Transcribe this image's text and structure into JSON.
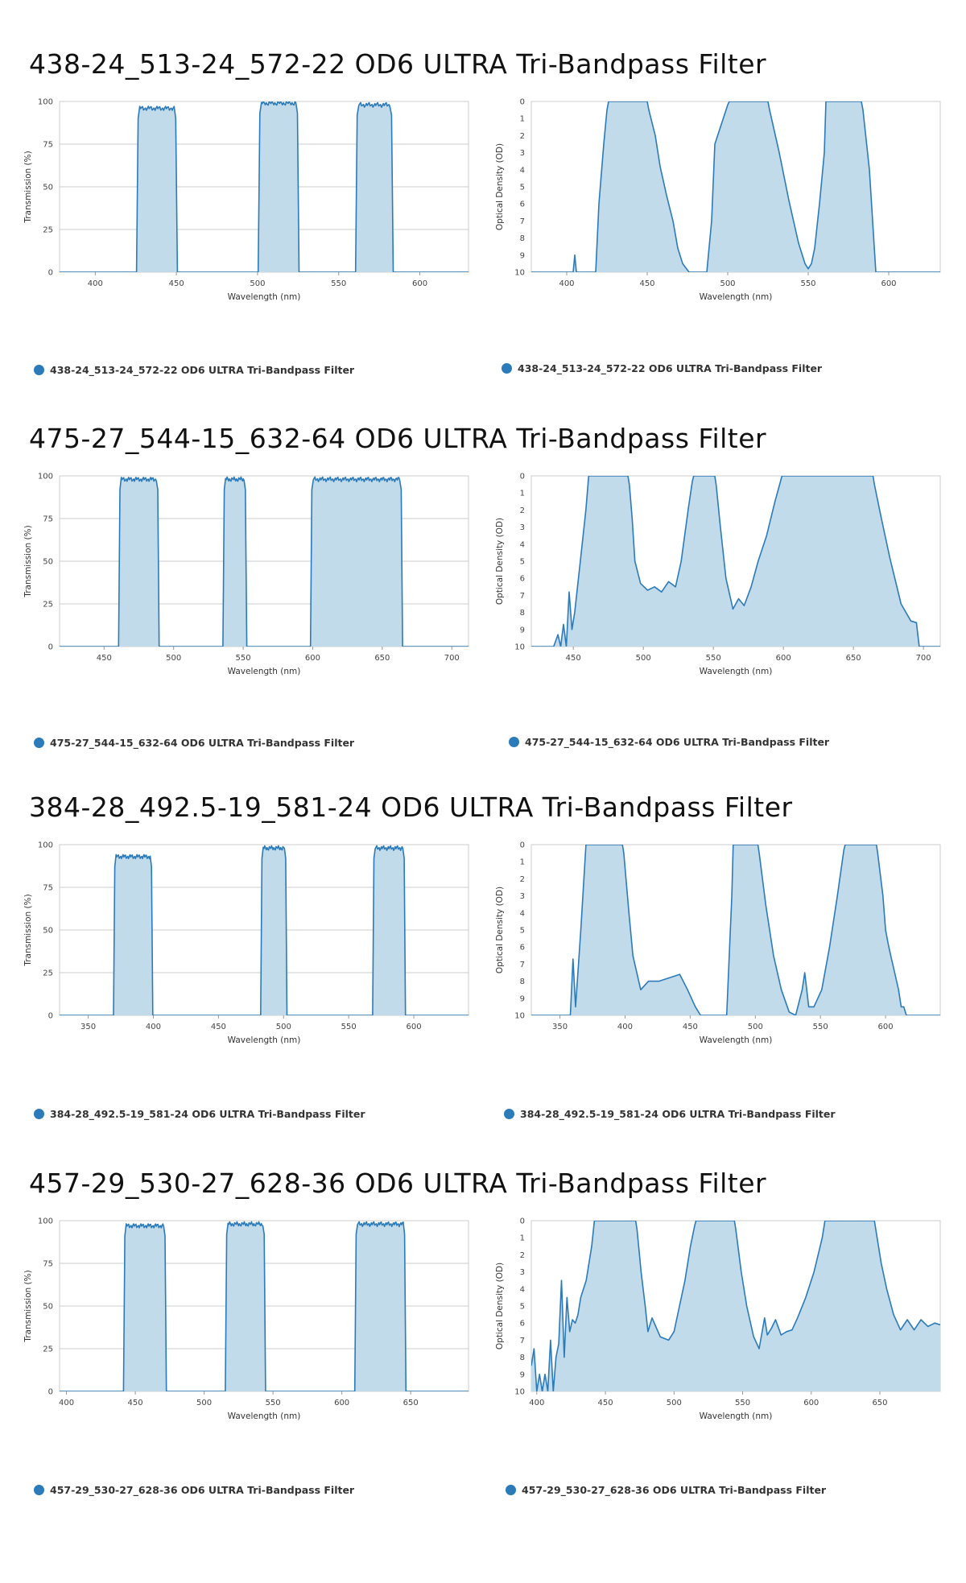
{
  "colors": {
    "line": "#2b7bba",
    "fill": "#c2dbea",
    "frame": "#cccccc",
    "grid": "#cccccc"
  },
  "sections": [
    {
      "title": "438-24_513-24_572-22 OD6 ULTRA Tri-Bandpass Filter",
      "transmission": {
        "legend": "438-24_513-24_572-22 OD6 ULTRA Tri-Bandpass Filter",
        "chart_data": {
          "type": "area",
          "xlabel": "Wavelength (nm)",
          "ylabel": "Transmission (%)",
          "xlim": [
            378,
            630
          ],
          "ylim": [
            0,
            100
          ],
          "xticks": [
            400,
            450,
            500,
            550,
            600
          ],
          "yticks": [
            0,
            25,
            50,
            75,
            100
          ],
          "grid": "y",
          "legend_position": "bottom-left",
          "bands": [
            {
              "start": 426,
              "end": 450,
              "peak": 96
            },
            {
              "start": 501,
              "end": 525,
              "peak": 99
            },
            {
              "start": 561,
              "end": 583,
              "peak": 98
            }
          ]
        }
      },
      "density": {
        "legend": "438-24_513-24_572-22 OD6 ULTRA Tri-Bandpass Filter",
        "chart_data": {
          "type": "area",
          "xlabel": "Wavelength (nm)",
          "ylabel": "Optical Density (OD)",
          "xlim": [
            378,
            632
          ],
          "ylim": [
            10,
            0
          ],
          "xticks": [
            400,
            450,
            500,
            550,
            600
          ],
          "yticks": [
            0,
            1,
            2,
            3,
            4,
            5,
            6,
            7,
            8,
            9,
            10
          ],
          "x": [
            378,
            404,
            405,
            406,
            407,
            418,
            420,
            423,
            425,
            426,
            450,
            451,
            455,
            458,
            462,
            466,
            469,
            472,
            476,
            479,
            482,
            487,
            490,
            492,
            500,
            501,
            525,
            526,
            532,
            538,
            544,
            548,
            550,
            552,
            554,
            557,
            560,
            561,
            583,
            584,
            588,
            592,
            632
          ],
          "y": [
            10,
            10,
            9,
            10,
            10,
            10,
            6,
            2.5,
            0.5,
            0,
            0,
            0.5,
            2,
            3.8,
            5.5,
            7,
            8.6,
            9.5,
            10,
            10,
            10,
            10,
            7,
            2.5,
            0.2,
            0,
            0,
            0.5,
            3,
            5.8,
            8.3,
            9.5,
            9.8,
            9.5,
            8.6,
            6,
            3,
            0,
            0,
            0.5,
            4,
            10,
            10
          ]
        }
      }
    },
    {
      "title": "475-27_544-15_632-64 OD6 ULTRA Tri-Bandpass Filter",
      "transmission": {
        "legend": "475-27_544-15_632-64 OD6 ULTRA Tri-Bandpass Filter",
        "chart_data": {
          "type": "area",
          "xlabel": "Wavelength (nm)",
          "ylabel": "Transmission (%)",
          "xlim": [
            418,
            712
          ],
          "ylim": [
            0,
            100
          ],
          "xticks": [
            450,
            500,
            550,
            600,
            650,
            700
          ],
          "yticks": [
            0,
            25,
            50,
            75,
            100
          ],
          "grid": "y",
          "legend_position": "bottom-left",
          "bands": [
            {
              "start": 461,
              "end": 489,
              "peak": 98
            },
            {
              "start": 536,
              "end": 552,
              "peak": 98
            },
            {
              "start": 599,
              "end": 664,
              "peak": 98
            }
          ]
        }
      },
      "density": {
        "legend": "475-27_544-15_632-64 OD6 ULTRA Tri-Bandpass Filter",
        "chart_data": {
          "type": "area",
          "xlabel": "Wavelength (nm)",
          "ylabel": "Optical Density (OD)",
          "xlim": [
            420,
            712
          ],
          "ylim": [
            10,
            0
          ],
          "xticks": [
            450,
            500,
            550,
            600,
            650,
            700
          ],
          "yticks": [
            0,
            1,
            2,
            3,
            4,
            5,
            6,
            7,
            8,
            9,
            10
          ],
          "x": [
            420,
            436,
            439,
            441,
            443,
            445,
            447,
            449,
            451,
            455,
            459,
            461,
            489,
            490,
            492,
            494,
            498,
            503,
            508,
            513,
            518,
            523,
            527,
            532,
            535,
            536,
            551,
            552,
            555,
            559,
            564,
            568,
            572,
            577,
            582,
            588,
            594,
            598,
            599,
            664,
            665,
            670,
            676,
            684,
            691,
            695,
            697,
            712
          ],
          "y": [
            10,
            10,
            9.3,
            10,
            8.7,
            10,
            6.8,
            9,
            8,
            5,
            2,
            0,
            0,
            0.5,
            2.5,
            5,
            6.3,
            6.7,
            6.5,
            6.8,
            6.2,
            6.5,
            5,
            2,
            0.3,
            0,
            0,
            0.5,
            3,
            6,
            7.8,
            7.2,
            7.6,
            6.5,
            5,
            3.5,
            1.5,
            0.3,
            0,
            0,
            0.5,
            2.5,
            4.8,
            7.5,
            8.5,
            8.6,
            10,
            10
          ]
        }
      }
    },
    {
      "title": "384-28_492.5-19_581-24 OD6 ULTRA Tri-Bandpass Filter",
      "transmission": {
        "legend": "384-28_492.5-19_581-24 OD6 ULTRA Tri-Bandpass Filter",
        "chart_data": {
          "type": "area",
          "xlabel": "Wavelength (nm)",
          "ylabel": "Transmission (%)",
          "xlim": [
            328,
            642
          ],
          "ylim": [
            0,
            100
          ],
          "xticks": [
            350,
            400,
            450,
            500,
            550,
            600
          ],
          "yticks": [
            0,
            25,
            50,
            75,
            100
          ],
          "grid": "y",
          "legend_position": "bottom-left",
          "bands": [
            {
              "start": 370,
              "end": 399,
              "peak": 93
            },
            {
              "start": 483,
              "end": 502,
              "peak": 98
            },
            {
              "start": 569,
              "end": 593,
              "peak": 98
            }
          ]
        }
      },
      "density": {
        "legend": "384-28_492.5-19_581-24 OD6 ULTRA Tri-Bandpass Filter",
        "chart_data": {
          "type": "area",
          "xlabel": "Wavelength (nm)",
          "ylabel": "Optical Density (OD)",
          "xlim": [
            328,
            642
          ],
          "ylim": [
            10,
            0
          ],
          "xticks": [
            350,
            400,
            450,
            500,
            550,
            600
          ],
          "yticks": [
            0,
            1,
            2,
            3,
            4,
            5,
            6,
            7,
            8,
            9,
            10
          ],
          "x": [
            328,
            358,
            360,
            362,
            366,
            370,
            398,
            399,
            403,
            406,
            412,
            418,
            426,
            434,
            442,
            448,
            454,
            458,
            462,
            465,
            478,
            482,
            483,
            502,
            503,
            508,
            514,
            520,
            526,
            531,
            536,
            538,
            541,
            545,
            551,
            557,
            563,
            568,
            569,
            593,
            594,
            598,
            600,
            602,
            604,
            607,
            610,
            612,
            614,
            616,
            642
          ],
          "y": [
            10,
            10,
            6.7,
            9.5,
            5,
            0,
            0,
            0.5,
            4,
            6.5,
            8.5,
            8,
            8,
            7.8,
            7.6,
            8.5,
            9.5,
            10,
            10,
            10,
            10,
            3,
            0,
            0,
            0.5,
            3.5,
            6.5,
            8.5,
            9.8,
            10,
            8.5,
            7.5,
            9.5,
            9.5,
            8.5,
            6,
            3,
            0.3,
            0,
            0,
            0.5,
            3,
            5,
            5.8,
            6.5,
            7.5,
            8.5,
            9.5,
            9.5,
            10,
            10
          ]
        }
      }
    },
    {
      "title": "457-29_530-27_628-36 OD6 ULTRA Tri-Bandpass Filter",
      "transmission": {
        "legend": "457-29_530-27_628-36 OD6 ULTRA Tri-Bandpass Filter",
        "chart_data": {
          "type": "area",
          "xlabel": "Wavelength (nm)",
          "ylabel": "Transmission (%)",
          "xlim": [
            395,
            692
          ],
          "ylim": [
            0,
            100
          ],
          "xticks": [
            400,
            450,
            500,
            550,
            600,
            650
          ],
          "yticks": [
            0,
            25,
            50,
            75,
            100
          ],
          "grid": "y",
          "legend_position": "bottom-left",
          "bands": [
            {
              "start": 442,
              "end": 472,
              "peak": 97
            },
            {
              "start": 516,
              "end": 544,
              "peak": 98
            },
            {
              "start": 610,
              "end": 646,
              "peak": 98
            }
          ]
        }
      },
      "density": {
        "legend": "457-29_530-27_628-36 OD6 ULTRA Tri-Bandpass Filter",
        "chart_data": {
          "type": "area",
          "xlabel": "Wavelength (nm)",
          "ylabel": "Optical Density (OD)",
          "xlim": [
            396,
            694
          ],
          "ylim": [
            10,
            0
          ],
          "xticks": [
            400,
            450,
            500,
            550,
            600,
            650
          ],
          "yticks": [
            0,
            1,
            2,
            3,
            4,
            5,
            6,
            7,
            8,
            9,
            10
          ],
          "x": [
            396,
            398,
            400,
            402,
            404,
            406,
            408,
            410,
            412,
            414,
            416,
            418,
            420,
            422,
            424,
            426,
            428,
            430,
            432,
            436,
            440,
            442,
            472,
            473,
            476,
            479,
            481,
            484,
            490,
            496,
            500,
            504,
            508,
            512,
            515,
            516,
            544,
            545,
            549,
            553,
            558,
            562,
            566,
            568,
            571,
            574,
            578,
            582,
            586,
            590,
            596,
            602,
            608,
            610,
            646,
            647,
            651,
            655,
            660,
            665,
            670,
            675,
            680,
            685,
            690,
            694
          ],
          "y": [
            8.5,
            7.5,
            10,
            9,
            10,
            9,
            10,
            7,
            10,
            8,
            7.2,
            3.5,
            8,
            4.5,
            6.5,
            5.8,
            6,
            5.5,
            4.5,
            3.5,
            1.5,
            0,
            0,
            0.5,
            3,
            5,
            6.5,
            5.7,
            6.8,
            7,
            6.5,
            5,
            3.5,
            1.5,
            0.3,
            0,
            0,
            0.5,
            3,
            5,
            6.8,
            7.5,
            5.7,
            6.7,
            6.3,
            5.8,
            6.7,
            6.5,
            6.4,
            5.7,
            4.5,
            3,
            1,
            0,
            0,
            0.5,
            2.5,
            4,
            5.5,
            6.4,
            5.8,
            6.4,
            5.8,
            6.2,
            6,
            6.1
          ]
        }
      }
    }
  ]
}
